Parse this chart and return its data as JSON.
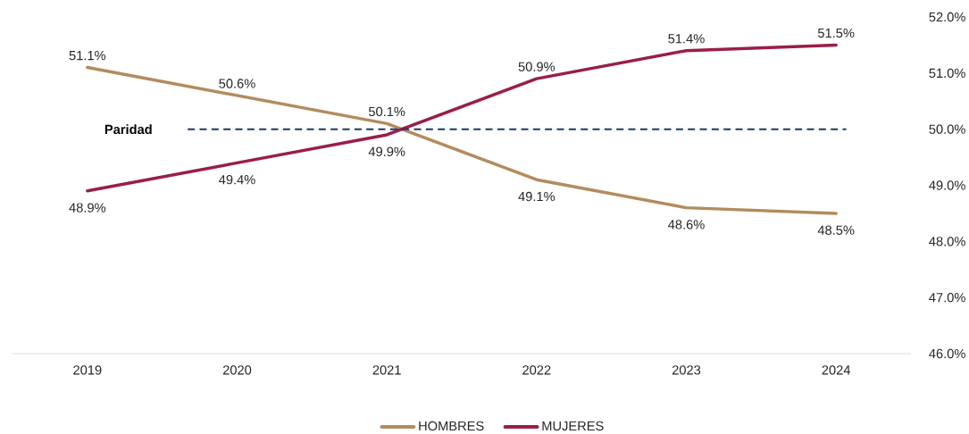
{
  "chart_data": {
    "type": "line",
    "categories": [
      "2019",
      "2020",
      "2021",
      "2022",
      "2023",
      "2024"
    ],
    "series": [
      {
        "name": "HOMBRES",
        "color": "#b38b5d",
        "values": [
          51.1,
          50.6,
          50.1,
          49.1,
          48.6,
          48.5
        ],
        "value_labels": [
          "51.1%",
          "50.6%",
          "50.1%",
          "49.1%",
          "48.6%",
          "48.5%"
        ]
      },
      {
        "name": "MUJERES",
        "color": "#9b1d48",
        "values": [
          48.9,
          49.4,
          49.9,
          50.9,
          51.4,
          51.5
        ],
        "value_labels": [
          "48.9%",
          "49.4%",
          "49.9%",
          "50.9%",
          "51.4%",
          "51.5%"
        ]
      }
    ],
    "ylim": [
      46,
      52
    ],
    "yticks": [
      {
        "value": 46,
        "label": "46.0%"
      },
      {
        "value": 47,
        "label": "47.0%"
      },
      {
        "value": 48,
        "label": "48.0%"
      },
      {
        "value": 49,
        "label": "49.0%"
      },
      {
        "value": 50,
        "label": "50.0%"
      },
      {
        "value": 51,
        "label": "51.0%"
      },
      {
        "value": 52,
        "label": "52.0%"
      }
    ],
    "ref_lines": [
      {
        "axis": "y",
        "value": 50,
        "label": "Paridad",
        "color": "#1f3864",
        "line_style": "dashed"
      }
    ],
    "legend": "bottom"
  }
}
